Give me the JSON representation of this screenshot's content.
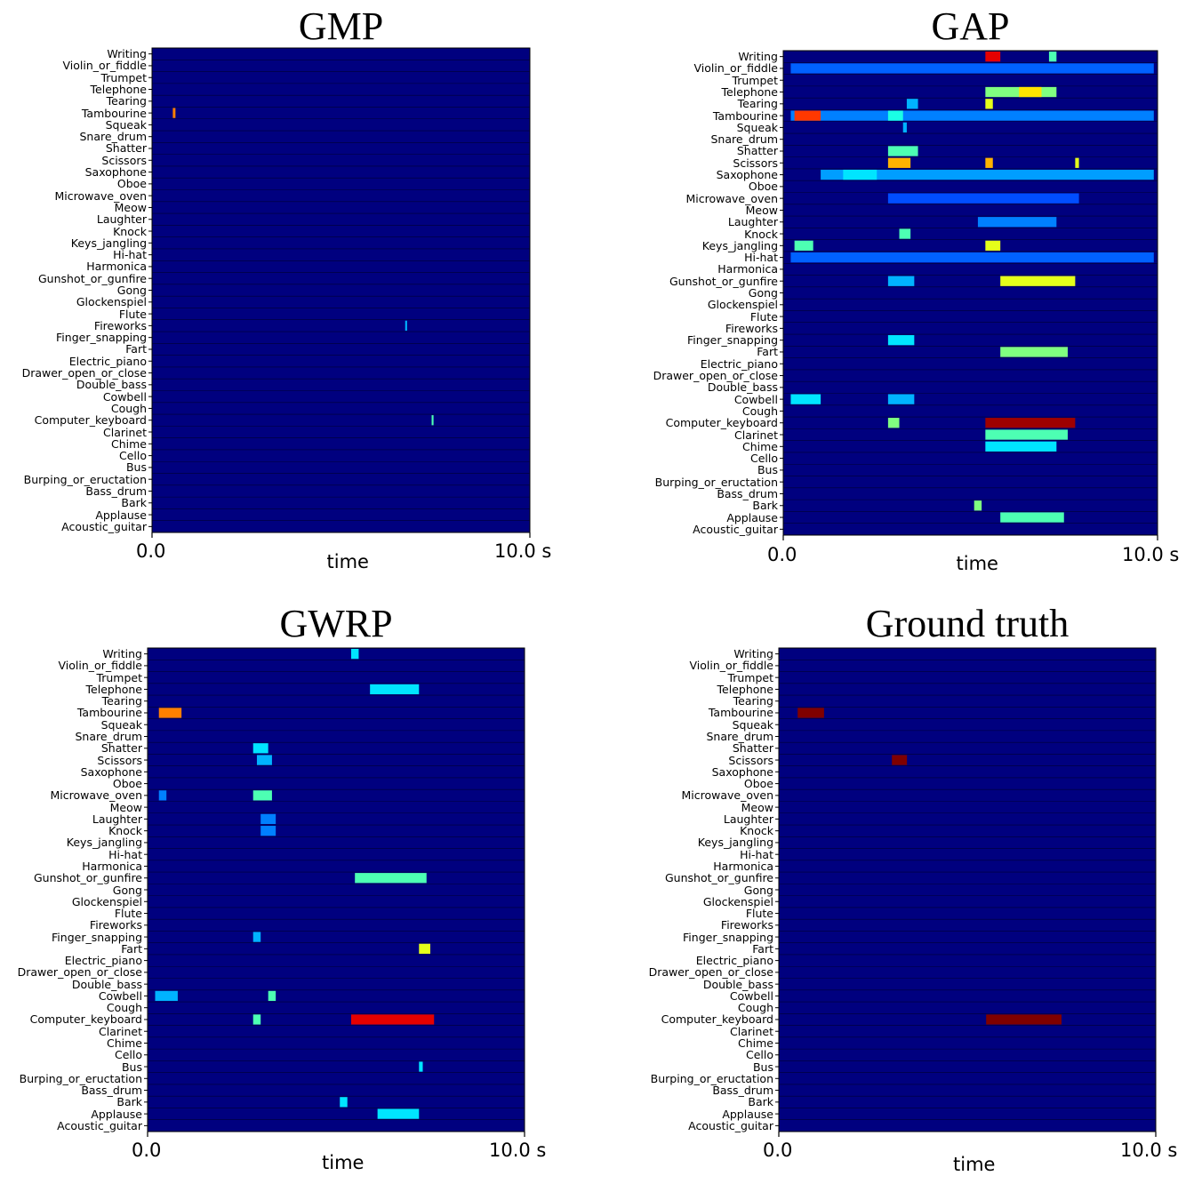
{
  "chart_data": [
    {
      "type": "heatmap",
      "title": "GMP",
      "xlabel": "time",
      "x_ticks": [
        "0.0",
        "10.0 s"
      ],
      "xlim": [
        0,
        10
      ],
      "colormap": "jet",
      "background_color": "#00007f",
      "hot_color": "#7f0000",
      "categories": [
        "Writing",
        "Violin_or_fiddle",
        "Trumpet",
        "Telephone",
        "Tearing",
        "Tambourine",
        "Squeak",
        "Snare_drum",
        "Shatter",
        "Scissors",
        "Saxophone",
        "Oboe",
        "Microwave_oven",
        "Meow",
        "Laughter",
        "Knock",
        "Keys_jangling",
        "Hi-hat",
        "Harmonica",
        "Gunshot_or_gunfire",
        "Gong",
        "Glockenspiel",
        "Flute",
        "Fireworks",
        "Finger_snapping",
        "Fart",
        "Electric_piano",
        "Drawer_open_or_close",
        "Double_bass",
        "Cowbell",
        "Cough",
        "Computer_keyboard",
        "Clarinet",
        "Chime",
        "Cello",
        "Bus",
        "Burping_or_eructation",
        "Bass_drum",
        "Bark",
        "Applause",
        "Acoustic_guitar"
      ],
      "cells": [
        {
          "category": "Tambourine",
          "t0": 0.55,
          "t1": 0.62,
          "v": 0.75
        },
        {
          "category": "Fireworks",
          "t0": 6.7,
          "t1": 6.75,
          "v": 0.3
        },
        {
          "category": "Computer_keyboard",
          "t0": 7.4,
          "t1": 7.45,
          "v": 0.45
        }
      ]
    },
    {
      "type": "heatmap",
      "title": "GAP",
      "xlabel": "time",
      "x_ticks": [
        "0.0",
        "10.0 s"
      ],
      "xlim": [
        0,
        10
      ],
      "colormap": "jet",
      "background_color": "#00007f",
      "hot_color": "#7f0000",
      "categories": [
        "Writing",
        "Violin_or_fiddle",
        "Trumpet",
        "Telephone",
        "Tearing",
        "Tambourine",
        "Squeak",
        "Snare_drum",
        "Shatter",
        "Scissors",
        "Saxophone",
        "Oboe",
        "Microwave_oven",
        "Meow",
        "Laughter",
        "Knock",
        "Keys_jangling",
        "Hi-hat",
        "Harmonica",
        "Gunshot_or_gunfire",
        "Gong",
        "Glockenspiel",
        "Flute",
        "Fireworks",
        "Finger_snapping",
        "Fart",
        "Electric_piano",
        "Drawer_open_or_close",
        "Double_bass",
        "Cowbell",
        "Cough",
        "Computer_keyboard",
        "Clarinet",
        "Chime",
        "Cello",
        "Bus",
        "Burping_or_eructation",
        "Bass_drum",
        "Bark",
        "Applause",
        "Acoustic_guitar"
      ],
      "cells": [
        {
          "category": "Writing",
          "t0": 5.4,
          "t1": 5.8,
          "v": 0.9
        },
        {
          "category": "Writing",
          "t0": 7.1,
          "t1": 7.3,
          "v": 0.45
        },
        {
          "category": "Violin_or_fiddle",
          "t0": 0.2,
          "t1": 9.9,
          "v": 0.22
        },
        {
          "category": "Telephone",
          "t0": 5.4,
          "t1": 7.3,
          "v": 0.5
        },
        {
          "category": "Telephone",
          "t0": 6.3,
          "t1": 6.9,
          "v": 0.65
        },
        {
          "category": "Tearing",
          "t0": 5.4,
          "t1": 5.6,
          "v": 0.6
        },
        {
          "category": "Tearing",
          "t0": 3.3,
          "t1": 3.6,
          "v": 0.3
        },
        {
          "category": "Tambourine",
          "t0": 0.2,
          "t1": 9.9,
          "v": 0.25
        },
        {
          "category": "Tambourine",
          "t0": 0.3,
          "t1": 1.0,
          "v": 0.82
        },
        {
          "category": "Tambourine",
          "t0": 2.8,
          "t1": 3.2,
          "v": 0.4
        },
        {
          "category": "Squeak",
          "t0": 3.2,
          "t1": 3.3,
          "v": 0.3
        },
        {
          "category": "Shatter",
          "t0": 2.8,
          "t1": 3.6,
          "v": 0.45
        },
        {
          "category": "Scissors",
          "t0": 2.8,
          "t1": 3.4,
          "v": 0.7
        },
        {
          "category": "Scissors",
          "t0": 5.4,
          "t1": 5.6,
          "v": 0.7
        },
        {
          "category": "Scissors",
          "t0": 7.8,
          "t1": 7.9,
          "v": 0.6
        },
        {
          "category": "Saxophone",
          "t0": 1.0,
          "t1": 9.9,
          "v": 0.28
        },
        {
          "category": "Saxophone",
          "t0": 1.6,
          "t1": 2.5,
          "v": 0.35
        },
        {
          "category": "Microwave_oven",
          "t0": 2.8,
          "t1": 7.9,
          "v": 0.2
        },
        {
          "category": "Laughter",
          "t0": 5.2,
          "t1": 7.3,
          "v": 0.25
        },
        {
          "category": "Knock",
          "t0": 3.1,
          "t1": 3.4,
          "v": 0.45
        },
        {
          "category": "Keys_jangling",
          "t0": 0.3,
          "t1": 0.8,
          "v": 0.45
        },
        {
          "category": "Keys_jangling",
          "t0": 5.4,
          "t1": 5.8,
          "v": 0.6
        },
        {
          "category": "Hi-hat",
          "t0": 0.2,
          "t1": 9.9,
          "v": 0.22
        },
        {
          "category": "Gunshot_or_gunfire",
          "t0": 5.8,
          "t1": 7.8,
          "v": 0.6
        },
        {
          "category": "Gunshot_or_gunfire",
          "t0": 2.8,
          "t1": 3.5,
          "v": 0.3
        },
        {
          "category": "Finger_snapping",
          "t0": 2.8,
          "t1": 3.5,
          "v": 0.35
        },
        {
          "category": "Fart",
          "t0": 5.8,
          "t1": 7.6,
          "v": 0.5
        },
        {
          "category": "Cowbell",
          "t0": 0.2,
          "t1": 1.0,
          "v": 0.35
        },
        {
          "category": "Cowbell",
          "t0": 2.8,
          "t1": 3.5,
          "v": 0.3
        },
        {
          "category": "Computer_keyboard",
          "t0": 5.4,
          "t1": 7.8,
          "v": 0.97
        },
        {
          "category": "Computer_keyboard",
          "t0": 2.8,
          "t1": 3.1,
          "v": 0.5
        },
        {
          "category": "Clarinet",
          "t0": 5.4,
          "t1": 7.6,
          "v": 0.45
        },
        {
          "category": "Chime",
          "t0": 5.4,
          "t1": 7.3,
          "v": 0.35
        },
        {
          "category": "Bark",
          "t0": 5.1,
          "t1": 5.3,
          "v": 0.5
        },
        {
          "category": "Applause",
          "t0": 5.8,
          "t1": 7.5,
          "v": 0.45
        }
      ]
    },
    {
      "type": "heatmap",
      "title": "GWRP",
      "xlabel": "time",
      "x_ticks": [
        "0.0",
        "10.0 s"
      ],
      "xlim": [
        0,
        10
      ],
      "colormap": "jet",
      "background_color": "#00007f",
      "hot_color": "#7f0000",
      "categories": [
        "Writing",
        "Violin_or_fiddle",
        "Trumpet",
        "Telephone",
        "Tearing",
        "Tambourine",
        "Squeak",
        "Snare_drum",
        "Shatter",
        "Scissors",
        "Saxophone",
        "Oboe",
        "Microwave_oven",
        "Meow",
        "Laughter",
        "Knock",
        "Keys_jangling",
        "Hi-hat",
        "Harmonica",
        "Gunshot_or_gunfire",
        "Gong",
        "Glockenspiel",
        "Flute",
        "Fireworks",
        "Finger_snapping",
        "Fart",
        "Electric_piano",
        "Drawer_open_or_close",
        "Double_bass",
        "Cowbell",
        "Cough",
        "Computer_keyboard",
        "Clarinet",
        "Chime",
        "Cello",
        "Bus",
        "Burping_or_eructation",
        "Bass_drum",
        "Bark",
        "Applause",
        "Acoustic_guitar"
      ],
      "cells": [
        {
          "category": "Writing",
          "t0": 5.4,
          "t1": 5.6,
          "v": 0.35
        },
        {
          "category": "Telephone",
          "t0": 5.9,
          "t1": 7.2,
          "v": 0.35
        },
        {
          "category": "Tambourine",
          "t0": 0.3,
          "t1": 0.9,
          "v": 0.75
        },
        {
          "category": "Shatter",
          "t0": 2.8,
          "t1": 3.2,
          "v": 0.35
        },
        {
          "category": "Scissors",
          "t0": 2.9,
          "t1": 3.3,
          "v": 0.3
        },
        {
          "category": "Microwave_oven",
          "t0": 2.8,
          "t1": 3.3,
          "v": 0.45
        },
        {
          "category": "Microwave_oven",
          "t0": 0.3,
          "t1": 0.5,
          "v": 0.25
        },
        {
          "category": "Laughter",
          "t0": 3.0,
          "t1": 3.4,
          "v": 0.25
        },
        {
          "category": "Knock",
          "t0": 3.0,
          "t1": 3.4,
          "v": 0.25
        },
        {
          "category": "Gunshot_or_gunfire",
          "t0": 5.5,
          "t1": 7.4,
          "v": 0.45
        },
        {
          "category": "Finger_snapping",
          "t0": 2.8,
          "t1": 3.0,
          "v": 0.3
        },
        {
          "category": "Fart",
          "t0": 7.2,
          "t1": 7.5,
          "v": 0.6
        },
        {
          "category": "Cowbell",
          "t0": 0.2,
          "t1": 0.8,
          "v": 0.3
        },
        {
          "category": "Cowbell",
          "t0": 3.2,
          "t1": 3.4,
          "v": 0.45
        },
        {
          "category": "Computer_keyboard",
          "t0": 5.4,
          "t1": 7.6,
          "v": 0.9
        },
        {
          "category": "Computer_keyboard",
          "t0": 2.8,
          "t1": 3.0,
          "v": 0.45
        },
        {
          "category": "Bark",
          "t0": 5.1,
          "t1": 5.3,
          "v": 0.35
        },
        {
          "category": "Applause",
          "t0": 6.1,
          "t1": 7.2,
          "v": 0.35
        },
        {
          "category": "Bus",
          "t0": 7.2,
          "t1": 7.3,
          "v": 0.35
        }
      ]
    },
    {
      "type": "heatmap",
      "title": "Ground truth",
      "xlabel": "time",
      "x_ticks": [
        "0.0",
        "10.0 s"
      ],
      "xlim": [
        0,
        10
      ],
      "colormap": "jet",
      "background_color": "#00007f",
      "hot_color": "#7f0000",
      "categories": [
        "Writing",
        "Violin_or_fiddle",
        "Trumpet",
        "Telephone",
        "Tearing",
        "Tambourine",
        "Squeak",
        "Snare_drum",
        "Shatter",
        "Scissors",
        "Saxophone",
        "Oboe",
        "Microwave_oven",
        "Meow",
        "Laughter",
        "Knock",
        "Keys_jangling",
        "Hi-hat",
        "Harmonica",
        "Gunshot_or_gunfire",
        "Gong",
        "Glockenspiel",
        "Flute",
        "Fireworks",
        "Finger_snapping",
        "Fart",
        "Electric_piano",
        "Drawer_open_or_close",
        "Double_bass",
        "Cowbell",
        "Cough",
        "Computer_keyboard",
        "Clarinet",
        "Chime",
        "Cello",
        "Bus",
        "Burping_or_eructation",
        "Bass_drum",
        "Bark",
        "Applause",
        "Acoustic_guitar"
      ],
      "cells": [
        {
          "category": "Tambourine",
          "t0": 0.5,
          "t1": 1.2,
          "v": 1.0
        },
        {
          "category": "Scissors",
          "t0": 3.0,
          "t1": 3.4,
          "v": 1.0
        },
        {
          "category": "Computer_keyboard",
          "t0": 5.5,
          "t1": 7.5,
          "v": 1.0
        }
      ]
    }
  ]
}
